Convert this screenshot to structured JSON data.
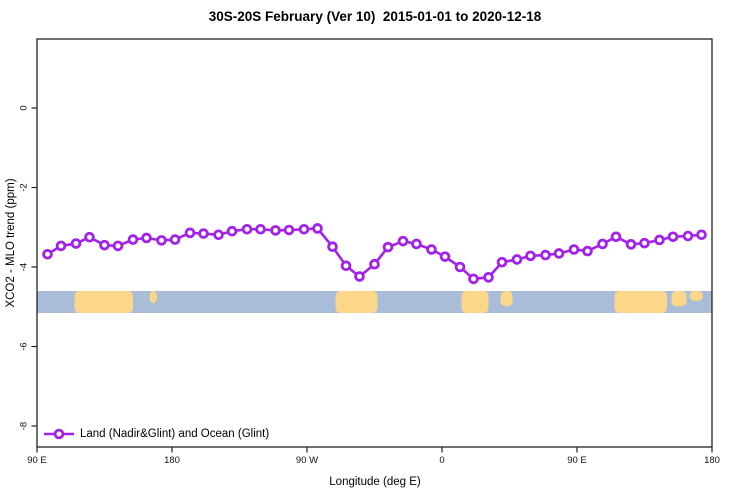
{
  "chart_data": {
    "type": "line",
    "title": "30S-20S February (Ver 10)  2015-01-01 to 2020-12-18",
    "xlabel": "Longitude (deg E)",
    "ylabel": "XCO2 - MLO trend (ppm)",
    "x_range_deg": [
      90,
      540
    ],
    "y_range_ppm": [
      -8.55,
      1.75
    ],
    "grid": "off",
    "x_ticks": [
      {
        "lon": 90,
        "label": "90 E"
      },
      {
        "lon": 180,
        "label": "180"
      },
      {
        "lon": 270,
        "label": "90 W"
      },
      {
        "lon": 360,
        "label": "0"
      },
      {
        "lon": 450,
        "label": "90 E"
      },
      {
        "lon": 540,
        "label": "180"
      }
    ],
    "y_ticks": [
      {
        "value": 0,
        "label": "0"
      },
      {
        "value": -2,
        "label": "-2"
      },
      {
        "value": -4,
        "label": "-4"
      },
      {
        "value": -6,
        "label": "-6"
      },
      {
        "value": -8,
        "label": "-8"
      }
    ],
    "legend": {
      "label": "Land (Nadir&Glint) and Ocean (Glint)",
      "position": "bottom-left"
    },
    "line_color": "#a322ea",
    "marker": "open-circle",
    "series": [
      {
        "name": "Land (Nadir&Glint) and Ocean (Glint)",
        "x_deg": [
          97,
          106,
          116,
          125,
          135,
          144,
          154,
          163,
          173,
          182,
          192,
          201,
          211,
          220,
          230,
          239,
          249,
          258,
          268,
          277,
          287,
          296,
          305,
          315,
          324,
          334,
          343,
          353,
          362,
          372,
          381,
          391,
          400,
          410,
          419,
          429,
          438,
          448,
          457,
          467,
          476,
          486,
          495,
          505,
          514,
          524,
          533
        ],
        "values_ppm": [
          -3.68,
          -3.47,
          -3.41,
          -3.25,
          -3.45,
          -3.47,
          -3.31,
          -3.27,
          -3.33,
          -3.31,
          -3.14,
          -3.16,
          -3.19,
          -3.1,
          -3.05,
          -3.05,
          -3.08,
          -3.07,
          -3.05,
          -3.03,
          -3.49,
          -3.97,
          -4.24,
          -3.93,
          -3.5,
          -3.35,
          -3.42,
          -3.56,
          -3.74,
          -4.0,
          -4.3,
          -4.26,
          -3.88,
          -3.81,
          -3.72,
          -3.7,
          -3.66,
          -3.56,
          -3.6,
          -3.42,
          -3.24,
          -3.43,
          -3.4,
          -3.32,
          -3.24,
          -3.22,
          -3.19
        ]
      }
    ],
    "strip": {
      "kind": "land-ocean-mask",
      "ocean_color": "#a9bdd8",
      "land_color": "#fcd78a",
      "y_from_ppm": -4.6,
      "y_to_ppm": -5.16,
      "land_patches": [
        {
          "lon_from": 115,
          "lon_to": 154,
          "height_frac": 1.0
        },
        {
          "lon_from": 165,
          "lon_to": 170,
          "height_frac": 0.55
        },
        {
          "lon_from": 289,
          "lon_to": 317,
          "height_frac": 1.0
        },
        {
          "lon_from": 373,
          "lon_to": 391,
          "height_frac": 1.0
        },
        {
          "lon_from": 399,
          "lon_to": 407,
          "height_frac": 0.7
        },
        {
          "lon_from": 475,
          "lon_to": 510,
          "height_frac": 1.0
        },
        {
          "lon_from": 513,
          "lon_to": 523,
          "height_frac": 0.7
        },
        {
          "lon_from": 525,
          "lon_to": 534,
          "height_frac": 0.45
        }
      ]
    }
  }
}
